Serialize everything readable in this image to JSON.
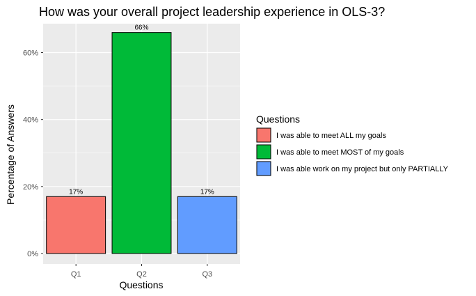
{
  "chart_data": {
    "type": "bar",
    "title": "How was your overall project leadership experience in OLS-3?",
    "xlabel": "Questions",
    "ylabel": "Percentage of Answers",
    "categories": [
      "Q1",
      "Q2",
      "Q3"
    ],
    "values": [
      17,
      66,
      17
    ],
    "data_labels": [
      "17%",
      "66%",
      "17%"
    ],
    "ylim": [
      0,
      70
    ],
    "yticks": [
      0,
      20,
      40,
      60
    ],
    "ytick_labels": [
      "0%",
      "20%",
      "40%",
      "60%"
    ],
    "grid": true,
    "legend": {
      "title": "Questions",
      "position": "right",
      "entries": [
        {
          "label": "I was able to meet ALL my goals",
          "color": "#F8766D"
        },
        {
          "label": "I was able to meet MOST of my goals",
          "color": "#00BA38"
        },
        {
          "label": "I was able work on my project but only PARTIALLY",
          "color": "#619CFF"
        }
      ]
    },
    "colors": [
      "#F8766D",
      "#00BA38",
      "#619CFF"
    ],
    "panel_background": "#EBEBEB"
  }
}
